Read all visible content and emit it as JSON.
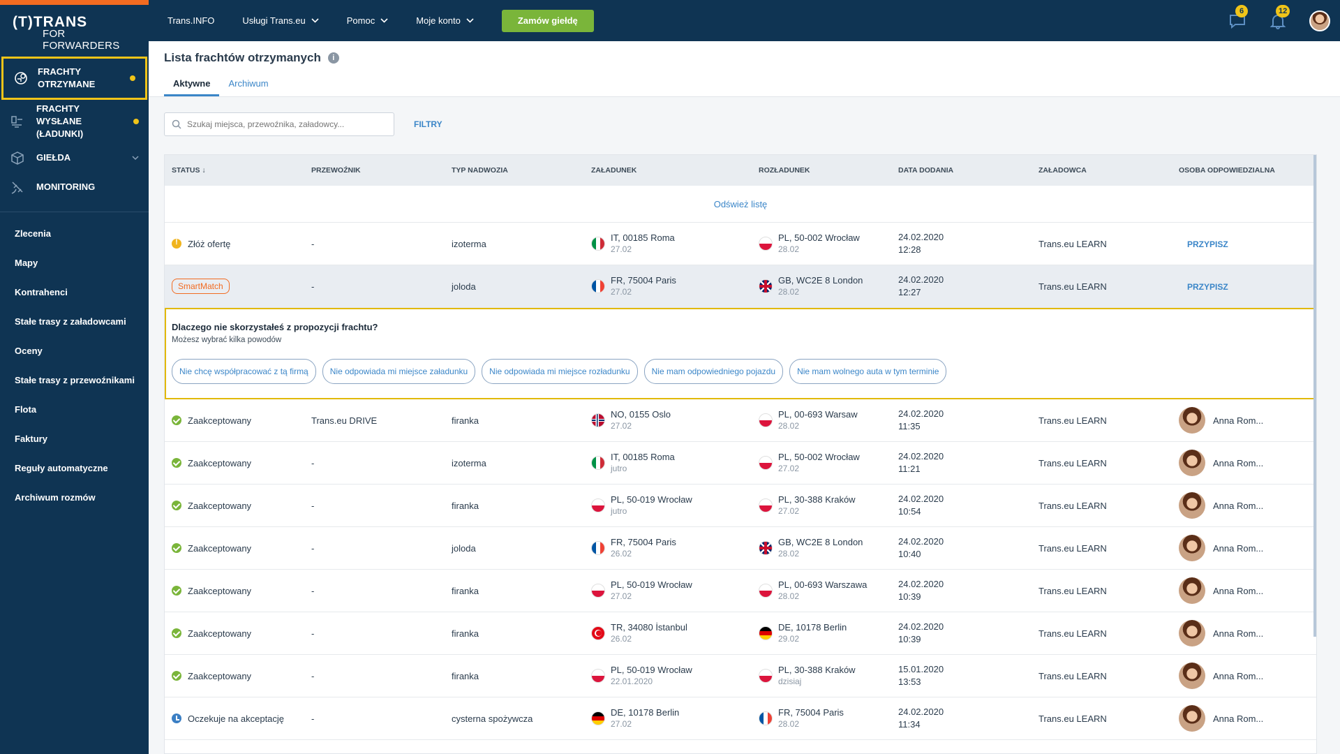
{
  "brand": {
    "logo_top": "(T)TRANS",
    "logo_bottom": "FOR FORWARDERS"
  },
  "sidebar": {
    "main_items": [
      {
        "label": "FRACHTY OTRZYMANE",
        "icon": "freight-received-icon",
        "active": true,
        "dot": true
      },
      {
        "label": "FRACHTY WYSŁANE (ŁADUNKI)",
        "icon": "freight-sent-icon",
        "active": false,
        "dot": true
      },
      {
        "label": "GIEŁDA",
        "icon": "exchange-icon",
        "active": false,
        "dot": false
      },
      {
        "label": "MONITORING",
        "icon": "satellite-icon",
        "active": false,
        "dot": false
      }
    ],
    "sub_items": [
      "Zlecenia",
      "Mapy",
      "Kontrahenci",
      "Stałe trasy z załadowcami",
      "Oceny",
      "Stałe trasy z przewoźnikami",
      "Flota",
      "Faktury",
      "Reguły automatyczne",
      "Archiwum rozmów"
    ]
  },
  "topbar": {
    "nav": [
      "Trans.INFO",
      "Usługi Trans.eu",
      "Pomoc",
      "Moje konto"
    ],
    "order_button": "Zamów giełdę",
    "messages_badge": "6",
    "notifications_badge": "12"
  },
  "page": {
    "title": "Lista frachtów otrzymanych",
    "tabs": [
      "Aktywne",
      "Archiwum"
    ],
    "search_placeholder": "Szukaj miejsca, przewoźnika, załadowcy...",
    "filters": "FILTRY"
  },
  "table": {
    "headers": [
      "STATUS ↓",
      "PRZEWOŹNIK",
      "TYP NADWOZIA",
      "ZAŁADUNEK",
      "ROZŁADUNEK",
      "DATA DODANIA",
      "ZAŁADOWCA",
      "OSOBA ODPOWIEDZIALNA"
    ],
    "refresh": "Odśwież listę",
    "rows": [
      {
        "status": "Złóż ofertę",
        "status_icon": "warn",
        "carrier": "-",
        "body": "izoterma",
        "load_flag": "it",
        "load": "IT, 00185 Roma",
        "load_date": "27.02",
        "unload_flag": "pl",
        "unload": "PL, 50-002 Wrocław",
        "unload_date": "28.02",
        "added_date": "24.02.2020",
        "added_time": "12:28",
        "shipper": "Trans.eu LEARN",
        "person": "PRZYPISZ",
        "assigned": false
      },
      {
        "status": "SmartMatch",
        "status_icon": "smart",
        "carrier": "-",
        "body": "joloda",
        "load_flag": "fr",
        "load": "FR, 75004 Paris",
        "load_date": "27.02",
        "unload_flag": "gb",
        "unload": "GB, WC2E 8 London",
        "unload_date": "28.02",
        "added_date": "24.02.2020",
        "added_time": "12:27",
        "shipper": "Trans.eu LEARN",
        "person": "PRZYPISZ",
        "assigned": false
      },
      {
        "status": "Zaakceptowany",
        "status_icon": "ok",
        "carrier": "Trans.eu DRIVE",
        "body": "firanka",
        "load_flag": "no",
        "load": "NO, 0155 Oslo",
        "load_date": "27.02",
        "unload_flag": "pl",
        "unload": "PL, 00-693 Warsaw",
        "unload_date": "28.02",
        "added_date": "24.02.2020",
        "added_time": "11:35",
        "shipper": "Trans.eu LEARN",
        "person": "Anna Rom...",
        "assigned": true
      },
      {
        "status": "Zaakceptowany",
        "status_icon": "ok",
        "carrier": "-",
        "body": "izoterma",
        "load_flag": "it",
        "load": "IT, 00185 Roma",
        "load_date": "jutro",
        "unload_flag": "pl",
        "unload": "PL, 50-002 Wrocław",
        "unload_date": "27.02",
        "added_date": "24.02.2020",
        "added_time": "11:21",
        "shipper": "Trans.eu LEARN",
        "person": "Anna Rom...",
        "assigned": true
      },
      {
        "status": "Zaakceptowany",
        "status_icon": "ok",
        "carrier": "-",
        "body": "firanka",
        "load_flag": "pl",
        "load": "PL, 50-019 Wrocław",
        "load_date": "jutro",
        "unload_flag": "pl",
        "unload": "PL, 30-388 Kraków",
        "unload_date": "27.02",
        "added_date": "24.02.2020",
        "added_time": "10:54",
        "shipper": "Trans.eu LEARN",
        "person": "Anna Rom...",
        "assigned": true
      },
      {
        "status": "Zaakceptowany",
        "status_icon": "ok",
        "carrier": "-",
        "body": "joloda",
        "load_flag": "fr",
        "load": "FR, 75004 Paris",
        "load_date": "26.02",
        "unload_flag": "gb",
        "unload": "GB, WC2E 8 London",
        "unload_date": "28.02",
        "added_date": "24.02.2020",
        "added_time": "10:40",
        "shipper": "Trans.eu LEARN",
        "person": "Anna Rom...",
        "assigned": true
      },
      {
        "status": "Zaakceptowany",
        "status_icon": "ok",
        "carrier": "-",
        "body": "firanka",
        "load_flag": "pl",
        "load": "PL, 50-019 Wrocław",
        "load_date": "27.02",
        "unload_flag": "pl",
        "unload": "PL, 00-693 Warszawa",
        "unload_date": "28.02",
        "added_date": "24.02.2020",
        "added_time": "10:39",
        "shipper": "Trans.eu LEARN",
        "person": "Anna Rom...",
        "assigned": true
      },
      {
        "status": "Zaakceptowany",
        "status_icon": "ok",
        "carrier": "-",
        "body": "firanka",
        "load_flag": "tr",
        "load": "TR, 34080 İstanbul",
        "load_date": "26.02",
        "unload_flag": "de",
        "unload": "DE, 10178 Berlin",
        "unload_date": "29.02",
        "added_date": "24.02.2020",
        "added_time": "10:39",
        "shipper": "Trans.eu LEARN",
        "person": "Anna Rom...",
        "assigned": true
      },
      {
        "status": "Zaakceptowany",
        "status_icon": "ok",
        "carrier": "-",
        "body": "firanka",
        "load_flag": "pl",
        "load": "PL, 50-019 Wrocław",
        "load_date": "22.01.2020",
        "unload_flag": "pl",
        "unload": "PL, 30-388 Kraków",
        "unload_date": "dzisiaj",
        "added_date": "15.01.2020",
        "added_time": "13:53",
        "shipper": "Trans.eu LEARN",
        "person": "Anna Rom...",
        "assigned": true
      },
      {
        "status": "Oczekuje na akceptację",
        "status_icon": "wait",
        "carrier": "-",
        "body": "cysterna spożywcza",
        "load_flag": "de",
        "load": "DE, 10178 Berlin",
        "load_date": "27.02",
        "unload_flag": "fr",
        "unload": "FR, 75004 Paris",
        "unload_date": "28.02",
        "added_date": "24.02.2020",
        "added_time": "11:34",
        "shipper": "Trans.eu LEARN",
        "person": "Anna Rom...",
        "assigned": true
      }
    ]
  },
  "reason_panel": {
    "title": "Dlaczego nie skorzystałeś z propozycji frachtu?",
    "subtitle": "Możesz wybrać kilka powodów",
    "chips": [
      "Nie chcę współpracować z tą firmą",
      "Nie odpowiada mi miejsce załadunku",
      "Nie odpowiada mi miejsce rozładunku",
      "Nie mam odpowiedniego pojazdu",
      "Nie mam wolnego auta w tym terminie"
    ]
  },
  "colors": {
    "sidebar_bg": "#0f3453",
    "accent_orange": "#f26b21",
    "highlight_yellow": "#f0c419",
    "link_blue": "#3b86c8",
    "success_green": "#7ab53a"
  }
}
